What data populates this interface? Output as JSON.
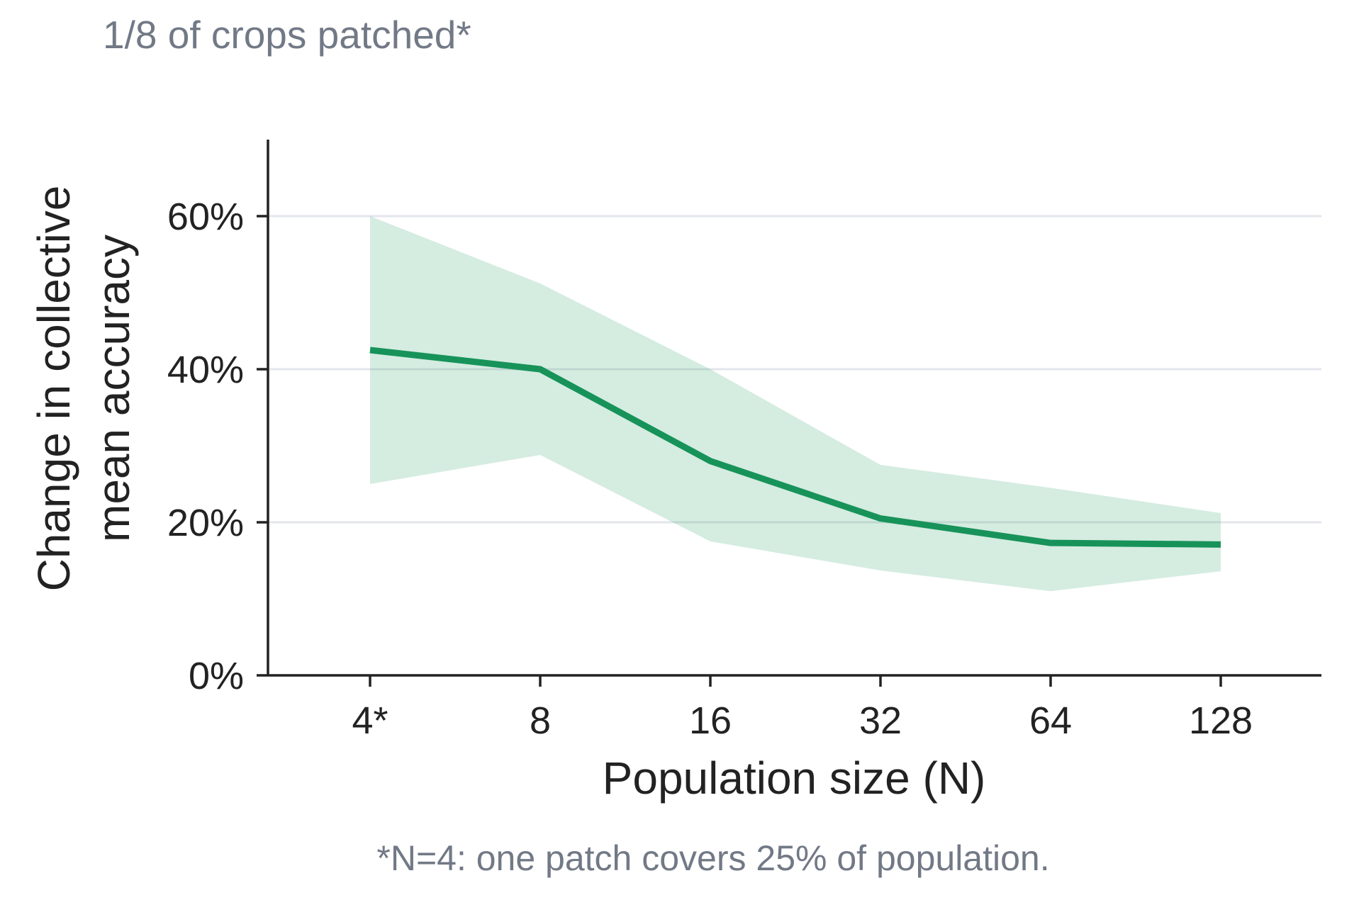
{
  "chart_data": {
    "type": "line",
    "subtitle": "1/8 of crops patched*",
    "footnote": "*N=4: one patch covers 25% of population.",
    "xlabel": "Population size (N)",
    "ylabel_lines": [
      "Change in collective",
      "mean accuracy"
    ],
    "categories": [
      "4*",
      "8",
      "16",
      "32",
      "64",
      "128"
    ],
    "y_ticks": [
      0,
      20,
      40,
      60
    ],
    "y_tick_labels": [
      "0%",
      "20%",
      "40%",
      "60%"
    ],
    "ylim": [
      0,
      70
    ],
    "grid": "horizontal",
    "series": [
      {
        "values": [
          42.5,
          40.0,
          28.0,
          20.5,
          17.3,
          17.1
        ],
        "lower": [
          25.0,
          28.8,
          17.5,
          13.7,
          11.0,
          13.6
        ],
        "upper": [
          60.0,
          51.2,
          40.0,
          27.5,
          24.5,
          21.2
        ],
        "color": "#17935a",
        "band_color": "#17935a"
      }
    ],
    "colors": {
      "axis": "#222222",
      "grid": "#e3e6ec",
      "muted_text": "#727986"
    }
  }
}
